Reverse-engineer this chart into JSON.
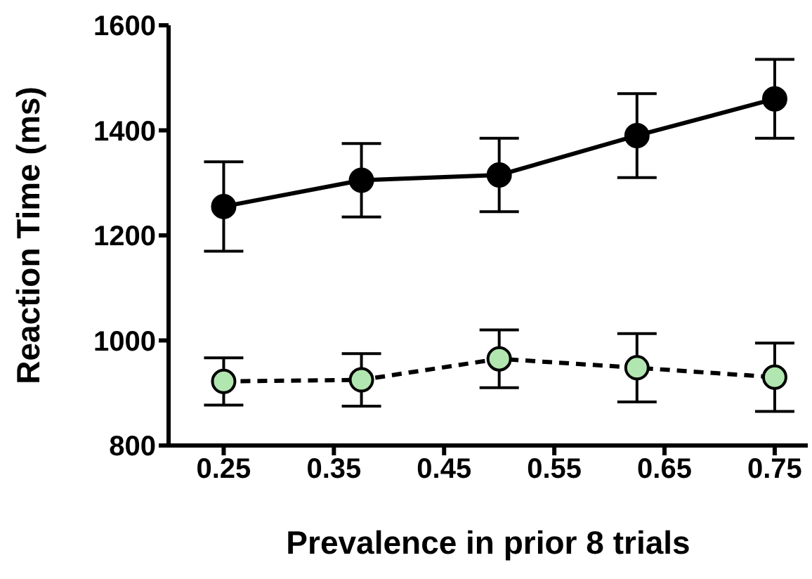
{
  "chart_data": {
    "type": "line",
    "xlabel": "Prevalence in prior 8 trials",
    "ylabel": "Reaction Time (ms)",
    "x": [
      0.25,
      0.375,
      0.5,
      0.625,
      0.75
    ],
    "series": [
      {
        "color": "#000000",
        "line_style": "solid",
        "values": [
          1255,
          1305,
          1315,
          1390,
          1460
        ],
        "errors": [
          85,
          70,
          70,
          80,
          75
        ]
      },
      {
        "color": "#b2e6b0",
        "line_style": "dashed",
        "values": [
          922,
          925,
          965,
          948,
          930
        ],
        "errors": [
          45,
          50,
          55,
          65,
          65
        ]
      }
    ],
    "xlim": [
      0.2,
      0.78
    ],
    "xticks": [
      0.25,
      0.35,
      0.45,
      0.55,
      0.65,
      0.75
    ],
    "ylim": [
      800,
      1600
    ],
    "yticks": [
      800,
      1000,
      1200,
      1400,
      1600
    ],
    "marker": "circle",
    "grid": false,
    "legend": false
  }
}
